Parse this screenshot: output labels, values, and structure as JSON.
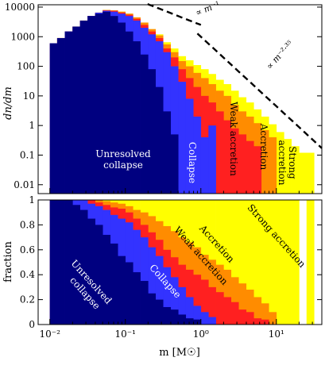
{
  "chart_data": [
    {
      "type": "histogram-stacked",
      "scale": "log-log",
      "ylabel": "dn/dm",
      "xlim": [
        0.007,
        40
      ],
      "ylim": [
        0.005,
        12000
      ],
      "yticks": [
        {
          "v": 0.01,
          "label": "0.01"
        },
        {
          "v": 0.1,
          "label": "0.1"
        },
        {
          "v": 1,
          "label": "1"
        },
        {
          "v": 10,
          "label": "10"
        },
        {
          "v": 100,
          "label": "100"
        },
        {
          "v": 1000,
          "label": "1000"
        },
        {
          "v": 10000,
          "label": "10000"
        }
      ],
      "bin_edges_msun": [
        0.01,
        0.0125,
        0.0158,
        0.02,
        0.0251,
        0.0316,
        0.0398,
        0.0501,
        0.0631,
        0.0794,
        0.1,
        0.126,
        0.158,
        0.2,
        0.251,
        0.316,
        0.398,
        0.501,
        0.631,
        0.794,
        1.0,
        1.26,
        1.58,
        2.0,
        2.51,
        3.16,
        3.98,
        5.01,
        6.31,
        7.94,
        10.0,
        12.6,
        15.8,
        20.0,
        25.1,
        31.6
      ],
      "series": [
        {
          "name": "Unresolved collapse",
          "color": "#000080",
          "values": [
            600,
            900,
            1500,
            2200,
            3500,
            5000,
            6000,
            7000,
            5000,
            3000,
            1500,
            700,
            250,
            80,
            20,
            3,
            0.5,
            null,
            null,
            null,
            null,
            null,
            null,
            null,
            null,
            null,
            null,
            null,
            null,
            null,
            null,
            null,
            null,
            null,
            null
          ]
        },
        {
          "name": "Collapse",
          "color": "#3333ff",
          "values": [
            600,
            900,
            1500,
            2200,
            3500,
            5000,
            6500,
            7500,
            7000,
            6000,
            5000,
            3500,
            2000,
            1200,
            700,
            300,
            100,
            30,
            8,
            2,
            0.4,
            1.0,
            null,
            null,
            null,
            null,
            null,
            null,
            null,
            null,
            null,
            null,
            null,
            null,
            null
          ]
        },
        {
          "name": "Weak accretion",
          "color": "#ff2020",
          "values": [
            600,
            900,
            1500,
            2200,
            3500,
            5000,
            6500,
            7800,
            7500,
            6500,
            5500,
            4000,
            2500,
            1500,
            900,
            400,
            200,
            80,
            40,
            20,
            10,
            6,
            3,
            1.5,
            0.8,
            0.5,
            0.3,
            0.2,
            null,
            null,
            null,
            null,
            null,
            null,
            null
          ]
        },
        {
          "name": "Accretion",
          "color": "#ff8c00",
          "values": [
            600,
            900,
            1500,
            2200,
            3500,
            5000,
            6500,
            8000,
            7800,
            7000,
            6000,
            4500,
            3000,
            1800,
            1100,
            550,
            300,
            150,
            100,
            60,
            40,
            25,
            15,
            10,
            5,
            3,
            2,
            1.2,
            0.7,
            0.4,
            null,
            null,
            null,
            null,
            null
          ]
        },
        {
          "name": "Strong accretion",
          "color": "#ffff00",
          "values": [
            600,
            900,
            1500,
            2200,
            3500,
            5000,
            6500,
            8000,
            7800,
            7000,
            6000,
            4500,
            3000,
            1800,
            1200,
            650,
            400,
            220,
            160,
            110,
            80,
            55,
            35,
            25,
            15,
            9,
            6,
            3.5,
            2,
            1.1,
            0.6,
            0.35,
            0.2,
            0.12,
            0.12
          ]
        }
      ],
      "reference_lines": [
        {
          "label": "∝ m⁻¹",
          "slope": -1,
          "anchor": {
            "m": 0.1,
            "y": 25000
          }
        },
        {
          "label": "∝ m⁻²·³⁵",
          "slope": -2.35,
          "anchor": {
            "m": 1.0,
            "y": 1000
          }
        }
      ]
    },
    {
      "type": "stacked-fraction",
      "scale": "log-x",
      "xlabel": "m [M☉]",
      "ylabel": "fraction",
      "ylim": [
        0,
        1
      ],
      "yticks": [
        {
          "v": 0,
          "label": "0"
        },
        {
          "v": 0.2,
          "label": "0.2"
        },
        {
          "v": 0.4,
          "label": "0.4"
        },
        {
          "v": 0.6,
          "label": "0.6"
        },
        {
          "v": 0.8,
          "label": "0.8"
        },
        {
          "v": 1,
          "label": "1"
        }
      ],
      "xticks": [
        {
          "v": 0.01,
          "label": "10⁻²"
        },
        {
          "v": 0.1,
          "label": "10⁻¹"
        },
        {
          "v": 1,
          "label": "10⁰"
        },
        {
          "v": 10,
          "label": "10¹"
        }
      ],
      "cumulative_fractions": {
        "unresolved": [
          1.0,
          1.0,
          1.0,
          0.96,
          0.92,
          0.85,
          0.8,
          0.72,
          0.65,
          0.55,
          0.5,
          0.42,
          0.35,
          0.25,
          0.2,
          0.14,
          0.12,
          0.08,
          0.05,
          0.04,
          0.0,
          0.0,
          0.0,
          0.0,
          0.0,
          0.0,
          0.0,
          0.0,
          0.0,
          0.0,
          0.0,
          0.0,
          0.0,
          0.0,
          0.0
        ],
        "collapse": [
          1.0,
          1.0,
          1.0,
          1.0,
          1.0,
          0.97,
          0.95,
          0.92,
          0.88,
          0.85,
          0.82,
          0.76,
          0.7,
          0.62,
          0.55,
          0.46,
          0.38,
          0.3,
          0.22,
          0.15,
          0.1,
          0.06,
          0.0,
          0.0,
          0.0,
          0.0,
          0.0,
          0.0,
          0.0,
          0.0,
          0.0,
          0.0,
          0.0,
          0.0,
          0.0
        ],
        "weak": [
          1.0,
          1.0,
          1.0,
          1.0,
          1.0,
          1.0,
          0.98,
          0.96,
          0.94,
          0.93,
          0.9,
          0.85,
          0.8,
          0.74,
          0.68,
          0.6,
          0.54,
          0.48,
          0.44,
          0.4,
          0.36,
          0.3,
          0.26,
          0.22,
          0.18,
          0.12,
          0.1,
          0.05,
          0.04,
          0.0,
          0.0,
          0.0,
          0.0,
          0.0,
          0.0
        ],
        "accretion": [
          1.0,
          1.0,
          1.0,
          1.0,
          1.0,
          1.0,
          1.0,
          0.99,
          0.98,
          0.97,
          0.95,
          0.92,
          0.9,
          0.87,
          0.83,
          0.79,
          0.75,
          0.7,
          0.66,
          0.62,
          0.56,
          0.52,
          0.48,
          0.44,
          0.38,
          0.33,
          0.28,
          0.22,
          0.17,
          0.1,
          0.0,
          0.0,
          0.0,
          0.0,
          0.0
        ],
        "strong": [
          1.0,
          1.0,
          1.0,
          1.0,
          1.0,
          1.0,
          1.0,
          1.0,
          1.0,
          1.0,
          1.0,
          1.0,
          1.0,
          1.0,
          1.0,
          1.0,
          1.0,
          1.0,
          1.0,
          1.0,
          1.0,
          1.0,
          1.0,
          1.0,
          1.0,
          1.0,
          1.0,
          1.0,
          1.0,
          1.0,
          1.0,
          1.0,
          1.0,
          1.0,
          1.0
        ]
      },
      "gap_bin_index": 33
    }
  ],
  "labels": {
    "top": {
      "unresolved_1": "Unresolved",
      "unresolved_2": "collapse",
      "collapse": "Collapse",
      "weak": "Weak accretion",
      "accretion": "Accretion",
      "strong_1": "Strong",
      "strong_2": "accretion",
      "slope1": "∝ m⁻¹",
      "slope2": "∝ m⁻²·³⁵"
    },
    "bottom": {
      "unresolved_1": "Unresolved",
      "unresolved_2": "collapse",
      "collapse": "Collapse",
      "weak": "Weak accretion",
      "accretion": "Accretion",
      "strong": "Strong accretion"
    },
    "ylabel_top": "dn/dm",
    "ylabel_bottom": "fraction",
    "xlabel": "m [M☉]"
  }
}
